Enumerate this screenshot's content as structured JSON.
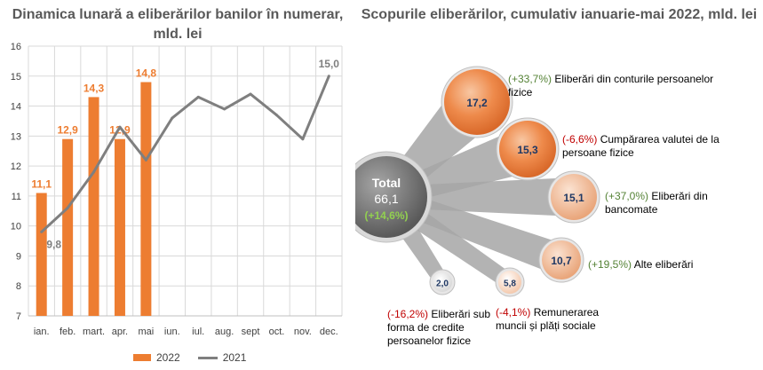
{
  "chart_data": [
    {
      "type": "bar",
      "title": "Dinamica lunară a eliberărilor banilor în numerar, mld. lei",
      "categories": [
        "ian.",
        "feb.",
        "mart.",
        "apr.",
        "mai",
        "iun.",
        "iul.",
        "aug.",
        "sept",
        "oct.",
        "nov.",
        "dec."
      ],
      "series": [
        {
          "name": "2022",
          "type": "bar",
          "values": [
            11.1,
            12.9,
            14.3,
            12.9,
            14.8,
            null,
            null,
            null,
            null,
            null,
            null,
            null
          ],
          "labels": [
            "11,1",
            "12,9",
            "14,3",
            "12,9",
            "14,8"
          ]
        },
        {
          "name": "2021",
          "type": "line",
          "values": [
            9.8,
            10.6,
            11.8,
            13.3,
            12.2,
            13.6,
            14.3,
            13.9,
            14.4,
            13.7,
            12.9,
            15.0
          ],
          "labels": {
            "0": "9,8",
            "11": "15,0"
          }
        }
      ],
      "ylim": [
        7,
        16
      ],
      "yticks": [
        7,
        8,
        9,
        10,
        11,
        12,
        13,
        14,
        15,
        16
      ],
      "grid": true,
      "legend": "bottom",
      "colors": {
        "bar": "#ED7D31",
        "line": "#7F7F7F"
      }
    },
    {
      "type": "bubble",
      "title": "Scopurile eliberărilor, cumulativ ianuarie-mai 2022, mld. lei",
      "total": {
        "label": "Total",
        "value": "66,1",
        "change": "(+14,6%)"
      },
      "items": [
        {
          "value": "17,2",
          "change": "(+33,7%)",
          "name": "Eliberări din conturile persoanelor fizice"
        },
        {
          "value": "15,3",
          "change": "(-6,6%)",
          "name": "Cumpărarea valutei de la persoane fizice"
        },
        {
          "value": "15,1",
          "change": "(+37,0%)",
          "name": "Eliberări din bancomate"
        },
        {
          "value": "10,7",
          "change": "(+19,5%)",
          "name": "Alte eliberări"
        },
        {
          "value": "5,8",
          "change": "(-4,1%)",
          "name": "Remunerarea muncii și plăți sociale"
        },
        {
          "value": "2,0",
          "change": "(-16,2%)",
          "name": "Eliberări sub forma de credite persoanelor fizice"
        }
      ]
    }
  ]
}
